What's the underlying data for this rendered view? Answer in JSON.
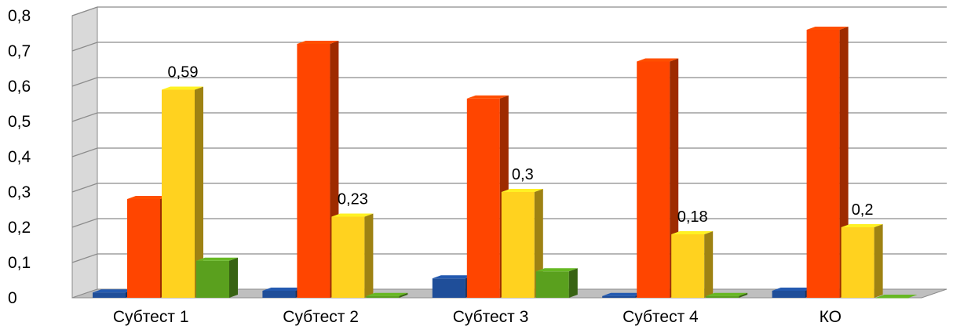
{
  "chart_data": {
    "type": "bar",
    "title": "",
    "xlabel": "",
    "ylabel": "",
    "ylim": [
      0,
      0.8
    ],
    "yticks": [
      "0",
      "0,1",
      "0,2",
      "0,3",
      "0,4",
      "0,5",
      "0,6",
      "0,7",
      "0,8"
    ],
    "grid": true,
    "legend": "none",
    "categories": [
      "Субтест 1",
      "Субтест 2",
      "Субтест 3",
      "Субтест 4",
      "КО"
    ],
    "series": [
      {
        "color": "#1f4e99",
        "values": [
          0.015,
          0.02,
          0.055,
          0.005,
          0.02
        ]
      },
      {
        "color": "#ff4500",
        "values": [
          0.28,
          0.72,
          0.565,
          0.67,
          0.76
        ]
      },
      {
        "color": "#ffd21f",
        "values": [
          0.59,
          0.23,
          0.3,
          0.18,
          0.2
        ],
        "labels": [
          "0,59",
          "0,23",
          "0,3",
          "0,18",
          "0,2"
        ]
      },
      {
        "color": "#5aa01e",
        "values": [
          0.105,
          0.005,
          0.075,
          0.005,
          0.0
        ]
      }
    ]
  }
}
